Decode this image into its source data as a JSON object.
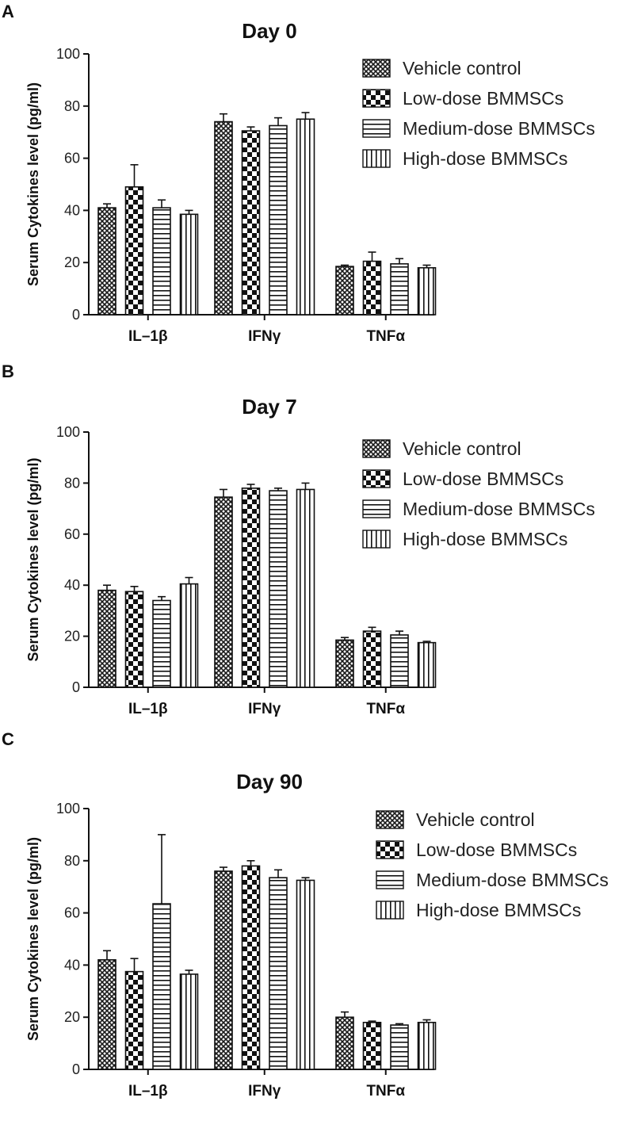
{
  "chart_data": [
    {
      "type": "bar",
      "panel": "A",
      "title": "Day 0",
      "ylabel": "Serum Cytokines level (pg/ml)",
      "ylim": [
        0,
        100
      ],
      "yticks": [
        "0",
        "20",
        "40",
        "60",
        "80",
        "100"
      ],
      "categories": [
        "IL–1β",
        "IFNγ",
        "TNFα"
      ],
      "legend_position": "top-right",
      "series": [
        {
          "name": "Vehicle control",
          "values": [
            41,
            74,
            18.5
          ],
          "errors": [
            1.5,
            3,
            0.5
          ]
        },
        {
          "name": "Low-dose BMMSCs",
          "values": [
            49,
            70.5,
            20.5
          ],
          "errors": [
            8.5,
            1.5,
            3.5
          ]
        },
        {
          "name": "Medium-dose BMMSCs",
          "values": [
            41,
            72.5,
            19.5
          ],
          "errors": [
            3,
            3,
            2
          ]
        },
        {
          "name": "High-dose BMMSCs",
          "values": [
            38.5,
            75,
            18
          ],
          "errors": [
            1.5,
            2.5,
            1
          ]
        }
      ]
    },
    {
      "type": "bar",
      "panel": "B",
      "title": "Day 7",
      "ylabel": "Serum Cytokines level (pg/ml)",
      "ylim": [
        0,
        100
      ],
      "yticks": [
        "0",
        "20",
        "40",
        "60",
        "80",
        "100"
      ],
      "categories": [
        "IL–1β",
        "IFNγ",
        "TNFα"
      ],
      "legend_position": "top-right",
      "series": [
        {
          "name": "Vehicle control",
          "values": [
            38,
            74.5,
            18.5
          ],
          "errors": [
            2,
            3,
            1
          ]
        },
        {
          "name": "Low-dose BMMSCs",
          "values": [
            37.5,
            78,
            22
          ],
          "errors": [
            2,
            1.5,
            1.5
          ]
        },
        {
          "name": "Medium-dose BMMSCs",
          "values": [
            34,
            77,
            20.5
          ],
          "errors": [
            1.5,
            1,
            1.5
          ]
        },
        {
          "name": "High-dose BMMSCs",
          "values": [
            40.5,
            77.5,
            17.5
          ],
          "errors": [
            2.5,
            2.5,
            0.5
          ]
        }
      ]
    },
    {
      "type": "bar",
      "panel": "C",
      "title": "Day 90",
      "ylabel": "Serum Cytokines level (pg/ml)",
      "ylim": [
        0,
        100
      ],
      "yticks": [
        "0",
        "20",
        "40",
        "60",
        "80",
        "100"
      ],
      "categories": [
        "IL–1β",
        "IFNγ",
        "TNFα"
      ],
      "legend_position": "top-right",
      "series": [
        {
          "name": "Vehicle control",
          "values": [
            42,
            76,
            20
          ],
          "errors": [
            3.5,
            1.5,
            2
          ]
        },
        {
          "name": "Low-dose BMMSCs",
          "values": [
            37.5,
            78,
            18
          ],
          "errors": [
            5,
            2,
            0.5
          ]
        },
        {
          "name": "Medium-dose BMMSCs",
          "values": [
            63.5,
            73.5,
            17
          ],
          "errors": [
            26.5,
            3,
            0.5
          ]
        },
        {
          "name": "High-dose BMMSCs",
          "values": [
            36.5,
            72.5,
            18
          ],
          "errors": [
            1.5,
            1,
            1
          ]
        }
      ]
    }
  ]
}
